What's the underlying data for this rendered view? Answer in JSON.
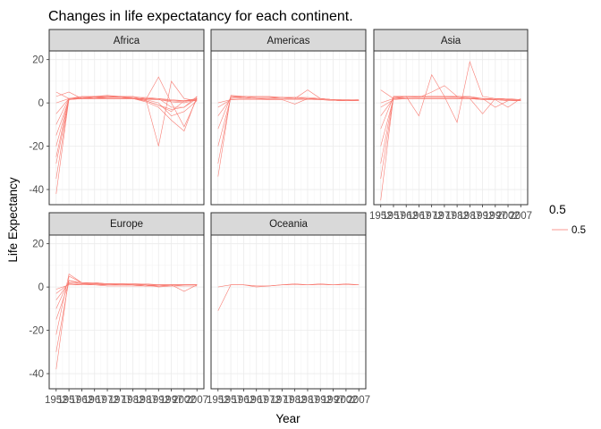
{
  "chart_data": {
    "type": "line",
    "title": "Changes in life expectatancy for each continent.",
    "xlabel": "Year",
    "ylabel": "Life Expectancy",
    "ylim": [
      -47,
      24
    ],
    "y_ticks": [
      -40,
      -20,
      0,
      20
    ],
    "x_ticks": [
      1952,
      1957,
      1962,
      1967,
      1972,
      1977,
      1982,
      1987,
      1992,
      1997,
      2002,
      2007
    ],
    "x_tick_labels": [
      "1952",
      "1957",
      "1962",
      "1967",
      "1972",
      "1977",
      "1982",
      "1987",
      "1992",
      "1997",
      "2002",
      "2007"
    ],
    "line_color": "#f8766d",
    "legend": {
      "title": "0.5",
      "entries": [
        "0.5"
      ],
      "position": "right"
    },
    "grid": true,
    "facets": [
      {
        "name": "Africa",
        "series": [
          {
            "values": [
              -42,
              2,
              2.5,
              2.8,
              3,
              2.5,
              2,
              1,
              -1,
              -3,
              -2,
              2
            ]
          },
          {
            "values": [
              -35,
              2,
              2.5,
              3,
              3,
              3,
              2.5,
              1.5,
              0,
              -6,
              -4,
              1
            ]
          },
          {
            "values": [
              -28,
              1.5,
              2,
              2.5,
              3,
              3,
              2,
              0.5,
              -2,
              -8,
              -13,
              3
            ]
          },
          {
            "values": [
              -25,
              2,
              2,
              2.5,
              2.5,
              3,
              3,
              2,
              -20,
              10,
              2,
              1
            ]
          },
          {
            "values": [
              -20,
              2,
              3,
              3,
              3.5,
              3,
              2,
              1,
              -1,
              -4,
              1,
              2
            ]
          },
          {
            "values": [
              -15,
              1.5,
              2,
              2,
              2.5,
              2.5,
              2,
              2,
              1.5,
              0.5,
              0,
              1.5
            ]
          },
          {
            "values": [
              -10,
              2,
              2.5,
              2.5,
              2,
              2,
              2,
              1.5,
              12,
              0,
              -11,
              2
            ]
          },
          {
            "values": [
              -5,
              2,
              2,
              2,
              2,
              2,
              2,
              2,
              2,
              -2,
              -2,
              3
            ]
          },
          {
            "values": [
              0,
              2,
              2,
              2.5,
              2.5,
              2.5,
              2.5,
              2.5,
              2,
              1,
              0.5,
              2
            ]
          },
          {
            "values": [
              5,
              2,
              2,
              2,
              2,
              2,
              2,
              1.5,
              1.5,
              1,
              1,
              1.5
            ]
          },
          {
            "values": [
              3,
              5,
              2,
              2,
              2,
              2,
              2,
              2,
              2,
              1.5,
              1,
              1
            ]
          }
        ]
      },
      {
        "name": "Americas",
        "series": [
          {
            "values": [
              -34,
              3.5,
              3,
              2.5,
              2.5,
              2.5,
              2.5,
              2,
              2,
              1.5,
              1.5,
              1
            ]
          },
          {
            "values": [
              -28,
              3,
              3,
              3,
              3,
              2.5,
              2,
              2,
              1.5,
              1.5,
              1,
              1
            ]
          },
          {
            "values": [
              -20,
              2.5,
              3,
              2.5,
              2.5,
              2.5,
              2.5,
              2.5,
              2,
              1.5,
              1.5,
              1.5
            ]
          },
          {
            "values": [
              -12,
              3,
              2.5,
              2,
              2,
              2.5,
              2,
              6,
              2,
              1.5,
              1,
              1
            ]
          },
          {
            "values": [
              -6,
              2,
              2.5,
              2,
              2,
              2,
              2,
              2,
              1.5,
              1.5,
              1,
              1
            ]
          },
          {
            "values": [
              -2,
              1.5,
              2,
              2,
              1.5,
              1.5,
              -0.5,
              2,
              2,
              1.5,
              1,
              1.5
            ]
          },
          {
            "values": [
              0,
              1.5,
              1.5,
              1.5,
              1.5,
              1.5,
              1.5,
              1.5,
              1.5,
              1,
              1,
              1
            ]
          }
        ]
      },
      {
        "name": "Asia",
        "series": [
          {
            "values": [
              -45,
              3,
              3,
              3,
              3,
              3,
              3,
              2.5,
              2,
              2,
              1.5,
              1.5
            ]
          },
          {
            "values": [
              -35,
              2.5,
              3,
              -6,
              13,
              3,
              2.5,
              2,
              2,
              1.5,
              1.5,
              1
            ]
          },
          {
            "values": [
              -28,
              3,
              3,
              3,
              3,
              3,
              -9,
              19,
              3,
              2,
              1.5,
              1.5
            ]
          },
          {
            "values": [
              -20,
              2,
              3,
              3,
              3,
              3,
              3,
              3,
              2,
              2,
              2,
              1.5
            ]
          },
          {
            "values": [
              -12,
              3,
              3,
              2.5,
              5,
              8,
              3,
              2.5,
              2,
              -2,
              1,
              1
            ]
          },
          {
            "values": [
              -6,
              2,
              2.5,
              2.5,
              2.5,
              2.5,
              2.5,
              2,
              2,
              1.5,
              -2,
              2
            ]
          },
          {
            "values": [
              -2,
              1.5,
              2,
              2,
              2,
              2,
              2,
              2,
              -5,
              2,
              1.5,
              1
            ]
          },
          {
            "values": [
              0,
              2,
              2,
              2,
              2,
              2,
              2,
              2,
              1.5,
              1.5,
              1,
              1
            ]
          },
          {
            "values": [
              6,
              2,
              2,
              2,
              2,
              2,
              2,
              2,
              1.5,
              1.5,
              1,
              1
            ]
          }
        ]
      },
      {
        "name": "Europe",
        "series": [
          {
            "values": [
              -38,
              5,
              2,
              2,
              1.5,
              1.5,
              1.5,
              1,
              1,
              1,
              1,
              1
            ]
          },
          {
            "values": [
              -30,
              3,
              2,
              2,
              1.5,
              1.5,
              1.5,
              1.5,
              1,
              1,
              1,
              1
            ]
          },
          {
            "values": [
              -22,
              6,
              2,
              1.5,
              1.5,
              1,
              1,
              0.5,
              0.5,
              1,
              1,
              1
            ]
          },
          {
            "values": [
              -15,
              2,
              1.5,
              1.5,
              1.5,
              1.5,
              1,
              1,
              0,
              0.5,
              1,
              1
            ]
          },
          {
            "values": [
              -10,
              3,
              1.5,
              1,
              1,
              1,
              1,
              0.5,
              1,
              1,
              1,
              1
            ]
          },
          {
            "values": [
              -6,
              2,
              1.5,
              1.5,
              1,
              1,
              1,
              1,
              1,
              1,
              1,
              1
            ]
          },
          {
            "values": [
              -3,
              1.5,
              1,
              1,
              1,
              1,
              1,
              1,
              0.5,
              1,
              -2,
              1
            ]
          },
          {
            "values": [
              -1,
              1,
              1,
              1,
              0.5,
              0.5,
              0.5,
              0.5,
              0.5,
              0.5,
              0.5,
              0.5
            ]
          }
        ]
      },
      {
        "name": "Oceania",
        "series": [
          {
            "values": [
              -11,
              1,
              1,
              0.5,
              0.5,
              1,
              1,
              1,
              1,
              1,
              1,
              1
            ]
          },
          {
            "values": [
              0,
              1,
              1,
              0,
              0.5,
              1,
              1.5,
              1,
              1.5,
              1,
              1.5,
              1
            ]
          }
        ]
      }
    ]
  }
}
